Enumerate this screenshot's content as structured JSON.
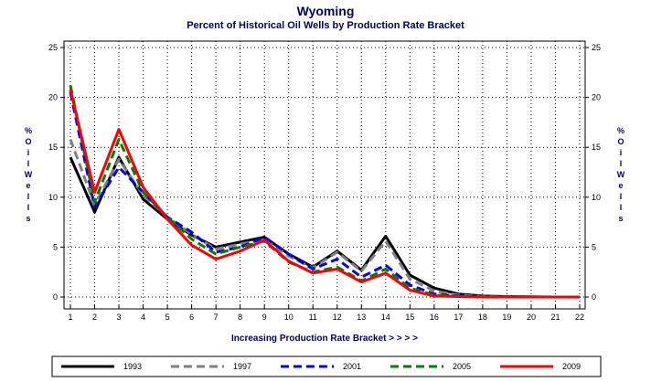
{
  "chart_data": {
    "type": "line",
    "title": "Wyoming",
    "subtitle": "Percent of Historical Oil Wells by Production Rate Bracket",
    "xlabel": "Increasing Production Rate Bracket > > > >",
    "ylabel": "% O i l W e l l s",
    "ylabel_letters": [
      "%",
      "O",
      "i",
      "l",
      "W",
      "e",
      "l",
      "l",
      "s"
    ],
    "x": [
      1,
      2,
      3,
      4,
      5,
      6,
      7,
      8,
      9,
      10,
      11,
      12,
      13,
      14,
      15,
      16,
      17,
      18,
      19,
      20,
      21,
      22
    ],
    "xlim": [
      1,
      22
    ],
    "ylim": [
      0,
      25
    ],
    "yticks": [
      0,
      5,
      10,
      15,
      20,
      25
    ],
    "grid": true,
    "legend_position": "bottom",
    "series": [
      {
        "name": "1993",
        "color": "#000000",
        "dash": "solid",
        "values": [
          14.0,
          8.5,
          14.0,
          9.8,
          7.8,
          6.2,
          5.0,
          5.5,
          6.0,
          4.3,
          3.0,
          4.6,
          2.7,
          6.1,
          2.2,
          0.9,
          0.3,
          0.1,
          0.05,
          0.02,
          0.0,
          0.0
        ]
      },
      {
        "name": "1997",
        "color": "#808080",
        "dash": "dashed",
        "values": [
          15.8,
          9.2,
          13.8,
          10.2,
          8.0,
          6.3,
          4.8,
          5.3,
          5.8,
          4.1,
          2.9,
          4.5,
          2.6,
          5.6,
          1.8,
          0.6,
          0.2,
          0.05,
          0.02,
          0.0,
          0.0,
          0.0
        ]
      },
      {
        "name": "2001",
        "color": "#0000ff",
        "dash": "dashed",
        "values": [
          20.5,
          9.0,
          13.0,
          10.5,
          8.0,
          6.5,
          4.5,
          5.0,
          6.0,
          4.3,
          2.8,
          3.8,
          2.0,
          3.2,
          1.2,
          0.3,
          0.1,
          0.02,
          0.0,
          0.0,
          0.0,
          0.0
        ]
      },
      {
        "name": "2005",
        "color": "#008000",
        "dash": "dashed",
        "values": [
          21.2,
          9.5,
          15.8,
          10.5,
          8.0,
          5.8,
          4.3,
          5.0,
          5.6,
          3.5,
          2.5,
          3.0,
          1.6,
          2.8,
          0.9,
          0.2,
          0.05,
          0.0,
          0.0,
          0.0,
          0.0,
          0.0
        ]
      },
      {
        "name": "2009",
        "color": "#ff0000",
        "dash": "solid",
        "values": [
          20.8,
          10.5,
          16.8,
          11.0,
          7.8,
          5.2,
          3.8,
          4.6,
          5.7,
          3.6,
          2.4,
          2.8,
          1.5,
          2.4,
          0.7,
          0.1,
          0.05,
          0.0,
          0.0,
          0.0,
          0.0,
          0.0
        ]
      }
    ]
  }
}
